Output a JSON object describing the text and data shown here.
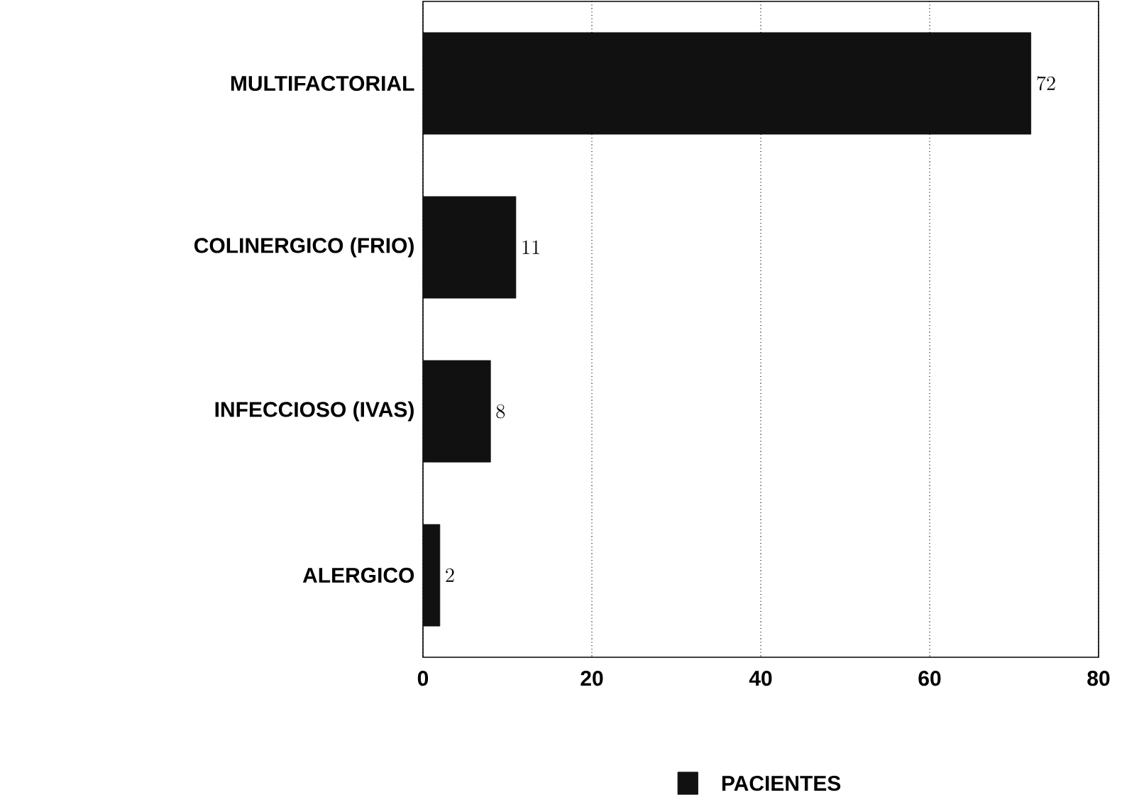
{
  "chart_data": {
    "type": "bar",
    "orientation": "horizontal",
    "categories": [
      "MULTIFACTORIAL",
      "COLINERGICO (FRIO)",
      "INFECCIOSO (IVAS)",
      "ALERGICO"
    ],
    "series": [
      {
        "name": "PACIENTES",
        "color": "#111111",
        "values": [
          72,
          11,
          8,
          2
        ]
      }
    ],
    "xlim": [
      0,
      80
    ],
    "xticks": [
      0,
      20,
      40,
      60,
      80
    ],
    "grid": "x",
    "legend": "bottom",
    "data_labels": true
  }
}
